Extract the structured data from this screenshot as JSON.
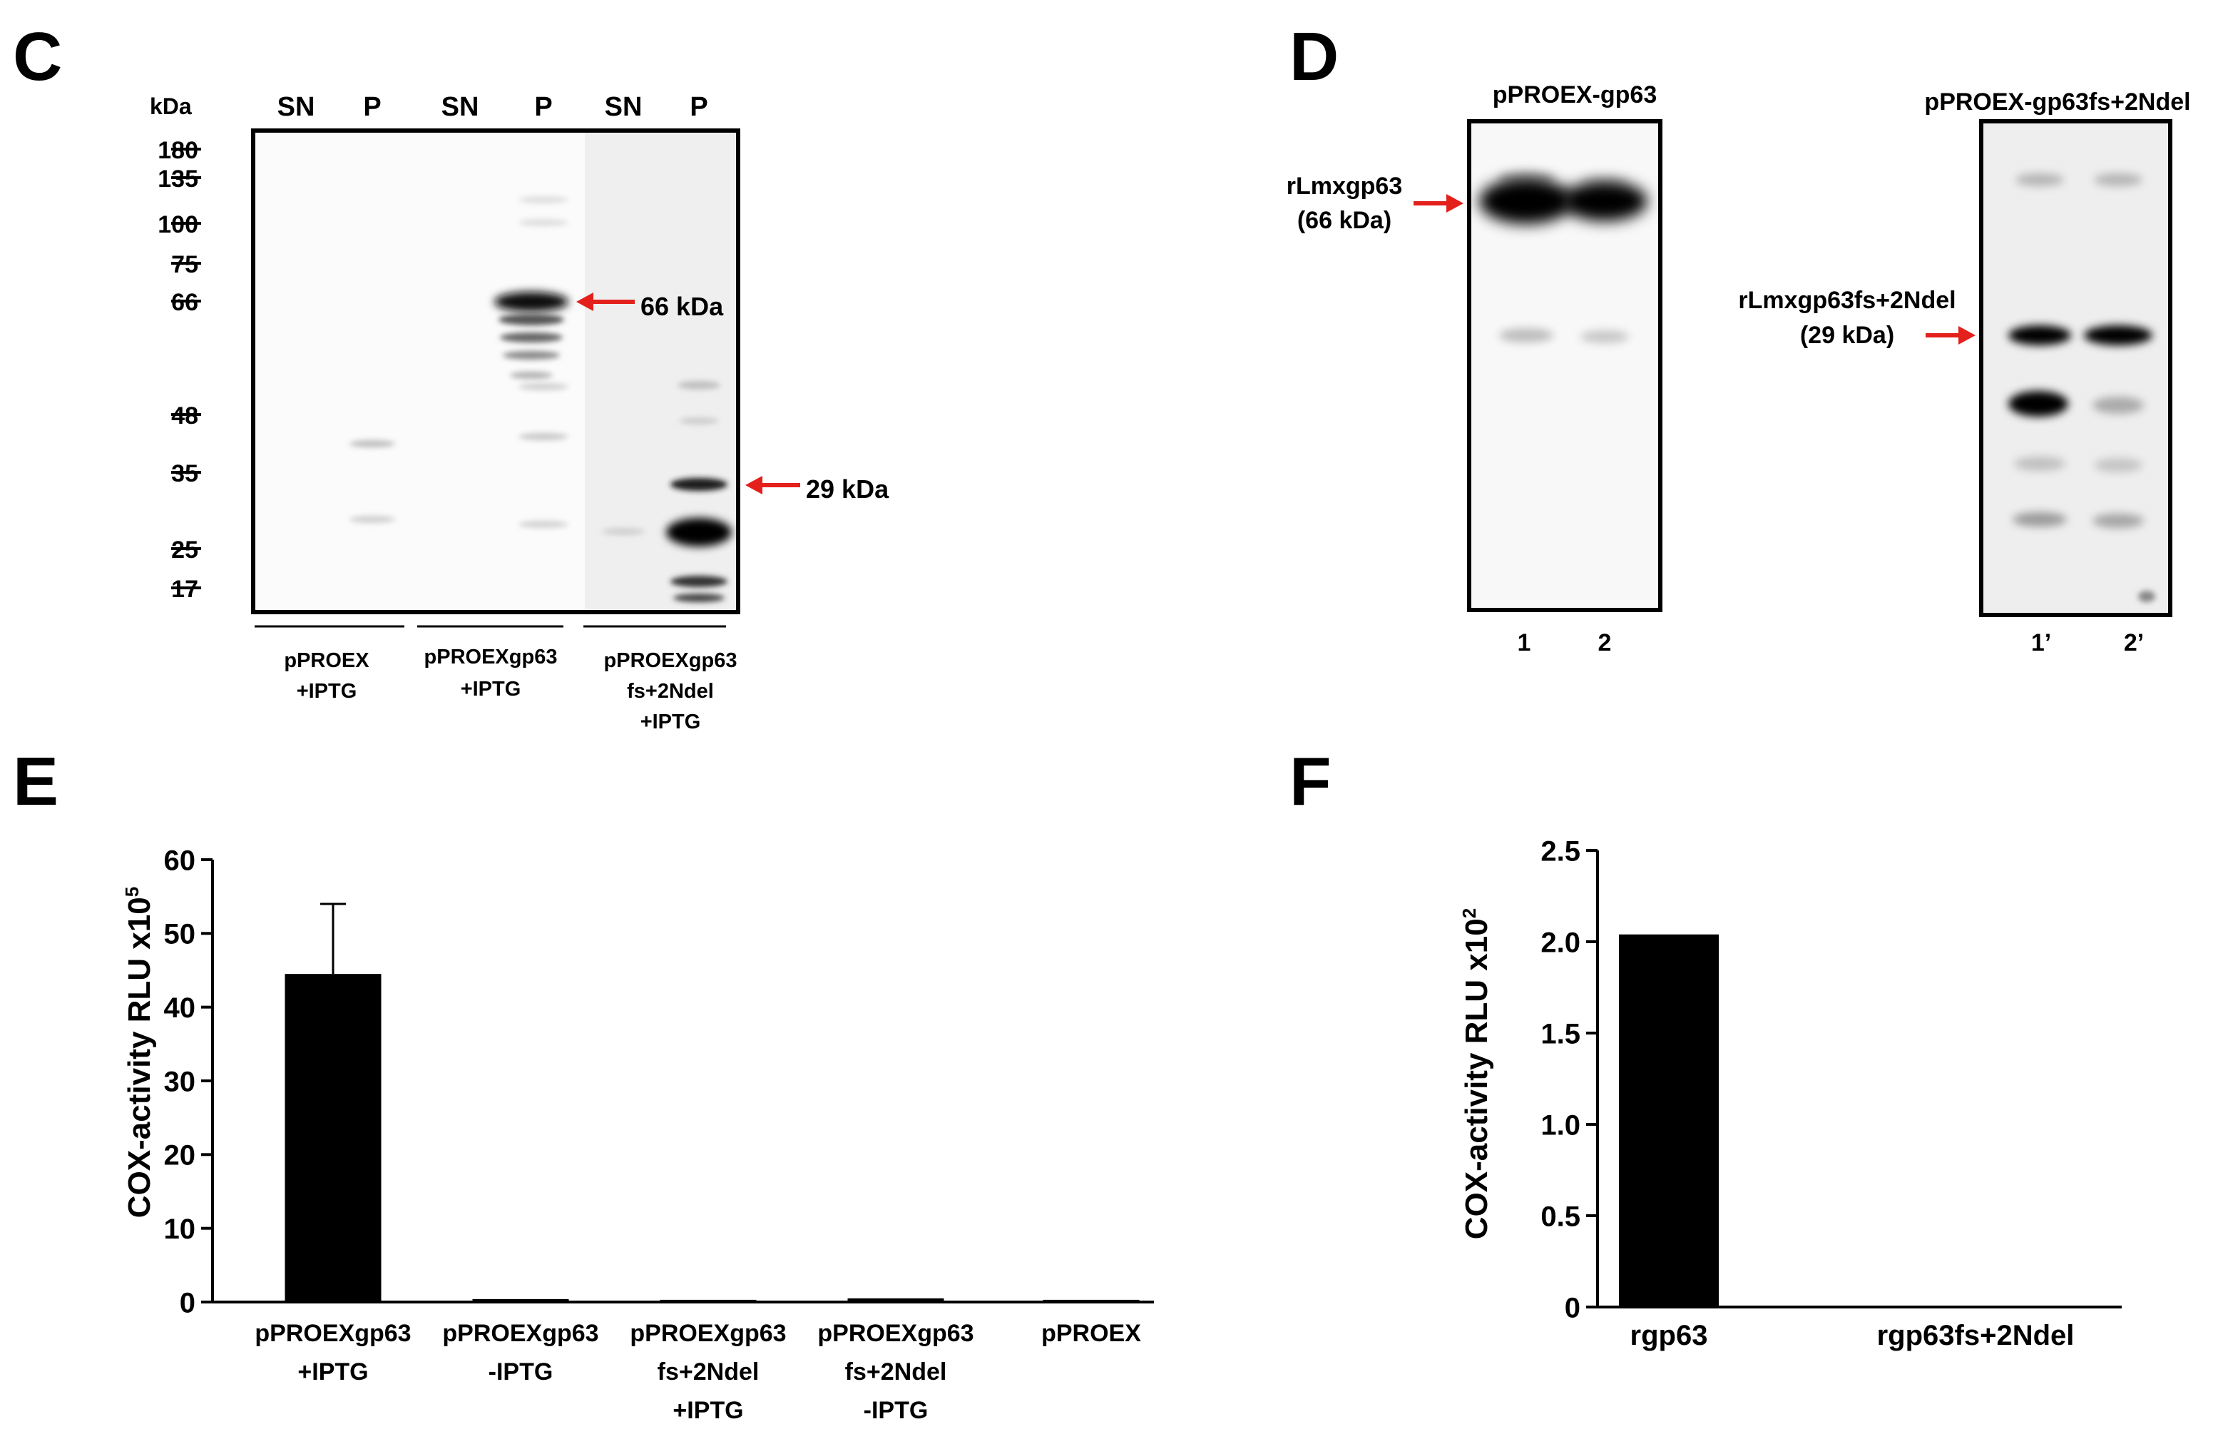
{
  "panels": {
    "C": {
      "letter": "C",
      "kda_label": "kDa",
      "lanes": [
        "SN",
        "P",
        "SN",
        "P",
        "SN",
        "P"
      ],
      "markers": [
        "180",
        "135",
        "100",
        "75",
        "66",
        "48",
        "35",
        "25",
        "17"
      ],
      "arrow_66": "66 kDa",
      "arrow_29": "29 kDa",
      "groups": [
        {
          "line1": "pPROEX",
          "line2": "+IPTG",
          "line3": ""
        },
        {
          "line1": "pPROEXgp63",
          "line2": "+IPTG",
          "line3": ""
        },
        {
          "line1": "pPROEXgp63",
          "line2": "fs+2Ndel",
          "line3": "+IPTG"
        }
      ],
      "arrow_color": "#e3201b"
    },
    "D": {
      "letter": "D",
      "blot1_title": "pPROEX-gp63",
      "blot2_title": "pPROEX-gp63fs+2Ndel",
      "label1_line1": "rLmxgp63",
      "label1_line2": "(66 kDa)",
      "label2_line1": "rLmxgp63fs+2Ndel",
      "label2_line2": "(29 kDa)",
      "lanes1": [
        "1",
        "2"
      ],
      "lanes2": [
        "1’",
        "2’"
      ]
    },
    "E": {
      "letter": "E"
    },
    "F": {
      "letter": "F"
    }
  },
  "chart_data": [
    {
      "type": "bar",
      "panel": "E",
      "ylabel": "COX-activity RLU x10",
      "ylabel_sup": "5",
      "ylim": [
        0,
        60
      ],
      "yticks": [
        "60",
        "50",
        "40",
        "30",
        "20",
        "10",
        "0"
      ],
      "categories": [
        {
          "line1": "pPROEXgp63",
          "line2": "+IPTG",
          "line3": ""
        },
        {
          "line1": "pPROEXgp63",
          "line2": "-IPTG",
          "line3": ""
        },
        {
          "line1": "pPROEXgp63",
          "line2": "fs+2Ndel",
          "line3": "+IPTG"
        },
        {
          "line1": "pPROEXgp63",
          "line2": "fs+2Ndel",
          "line3": "-IPTG"
        },
        {
          "line1": "pPROEX",
          "line2": "",
          "line3": ""
        }
      ],
      "values": [
        44.5,
        0.4,
        0.3,
        0.5,
        0.3
      ],
      "error_upper": [
        9.5,
        0,
        0,
        0,
        0
      ],
      "bar_color": "#000000"
    },
    {
      "type": "bar",
      "panel": "F",
      "ylabel": "COX-activity RLU x10",
      "ylabel_sup": "2",
      "ylim": [
        0,
        2.5
      ],
      "yticks": [
        "2.5",
        "2.0",
        "1.5",
        "1.0",
        "0.5",
        "0"
      ],
      "categories": [
        "rgp63",
        "rgp63fs+2Ndel"
      ],
      "values": [
        2.04,
        0
      ],
      "bar_color": "#000000"
    }
  ]
}
